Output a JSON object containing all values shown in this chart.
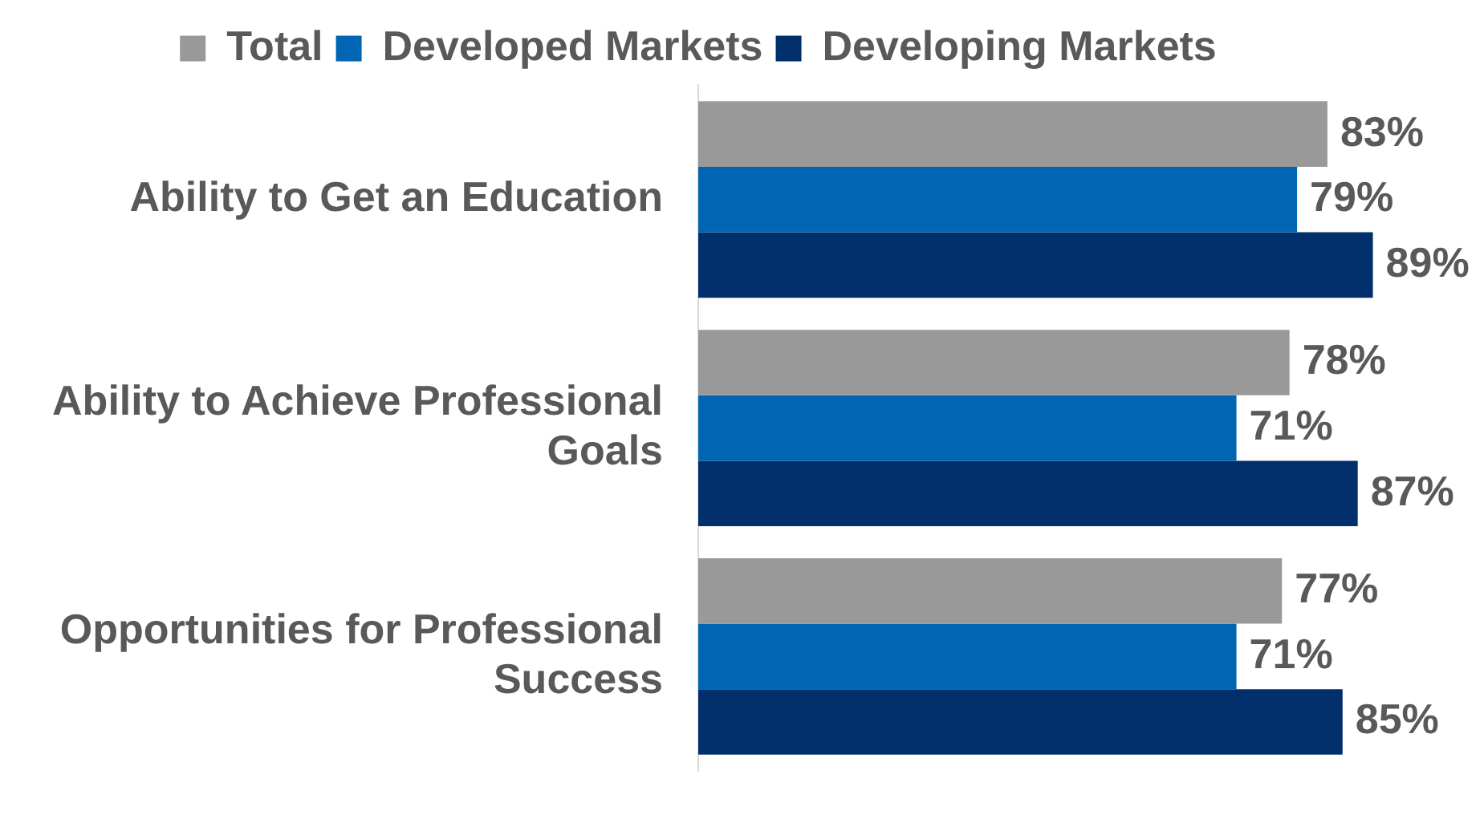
{
  "chart_data": {
    "type": "bar",
    "orientation": "horizontal",
    "categories": [
      "Ability to Get an Education",
      "Ability to Achieve Professional Goals",
      "Opportunities for Professional Success"
    ],
    "series": [
      {
        "name": "Total",
        "color": "#999999",
        "values": [
          83,
          78,
          77
        ],
        "value_labels": [
          "83%",
          "78%",
          "77%"
        ]
      },
      {
        "name": "Developed Markets",
        "color": "#0066b3",
        "values": [
          79,
          71,
          71
        ],
        "value_labels": [
          "79%",
          "71%",
          "71%"
        ]
      },
      {
        "name": "Developing Markets",
        "color": "#002f6c",
        "values": [
          89,
          87,
          85
        ],
        "value_labels": [
          "89%",
          "87%",
          "85%"
        ]
      }
    ],
    "tick_labels": "y",
    "grid": false,
    "legend": "top"
  }
}
